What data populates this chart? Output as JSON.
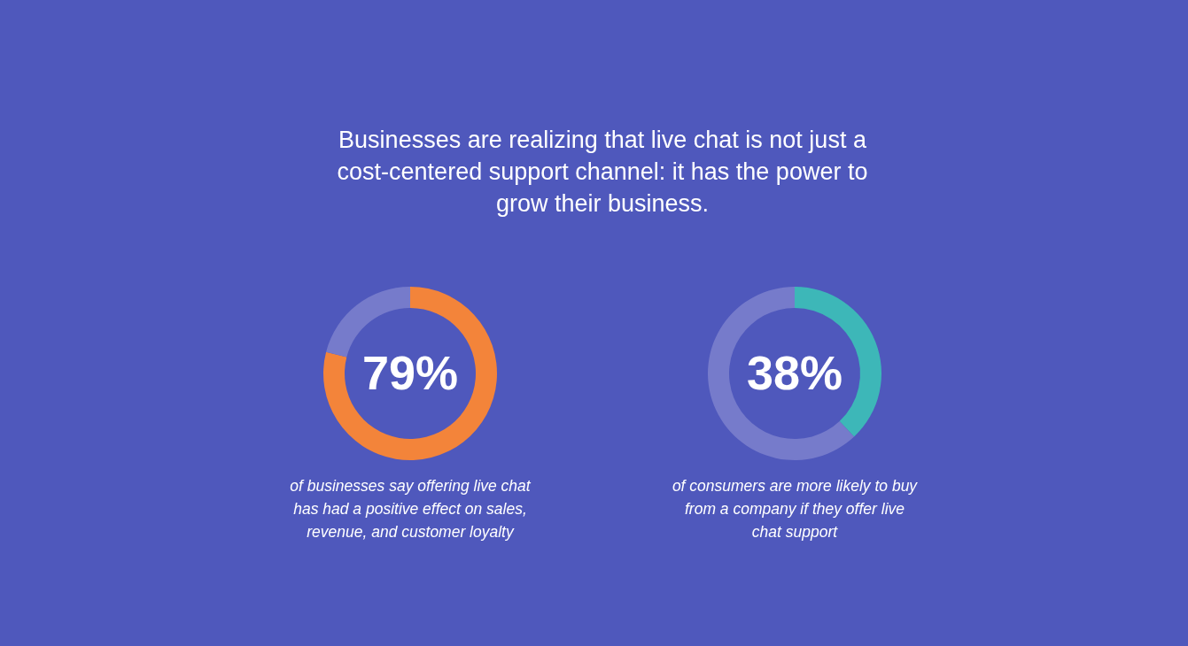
{
  "chart_data": [
    {
      "type": "donut",
      "title": "Businesses are realizing that live chat is not just a cost-centered support channel: it has the power to grow their business.",
      "categories": [
        null,
        null
      ],
      "values": [
        79,
        21
      ],
      "colors": [
        "#f3843a",
        "#767bcb"
      ],
      "value_labels": [
        "79%",
        null
      ],
      "annotations": [
        "of businesses say offering live chat has had a positive effect on sales, revenue, and customer loyalty"
      ]
    },
    {
      "type": "donut",
      "categories": [
        null,
        null
      ],
      "values": [
        38,
        62
      ],
      "colors": [
        "#3db7b8",
        "#767bcb"
      ],
      "value_labels": [
        "38%",
        null
      ],
      "annotations": [
        "of consumers are more likely to buy from a company if they offer live chat support"
      ]
    }
  ]
}
